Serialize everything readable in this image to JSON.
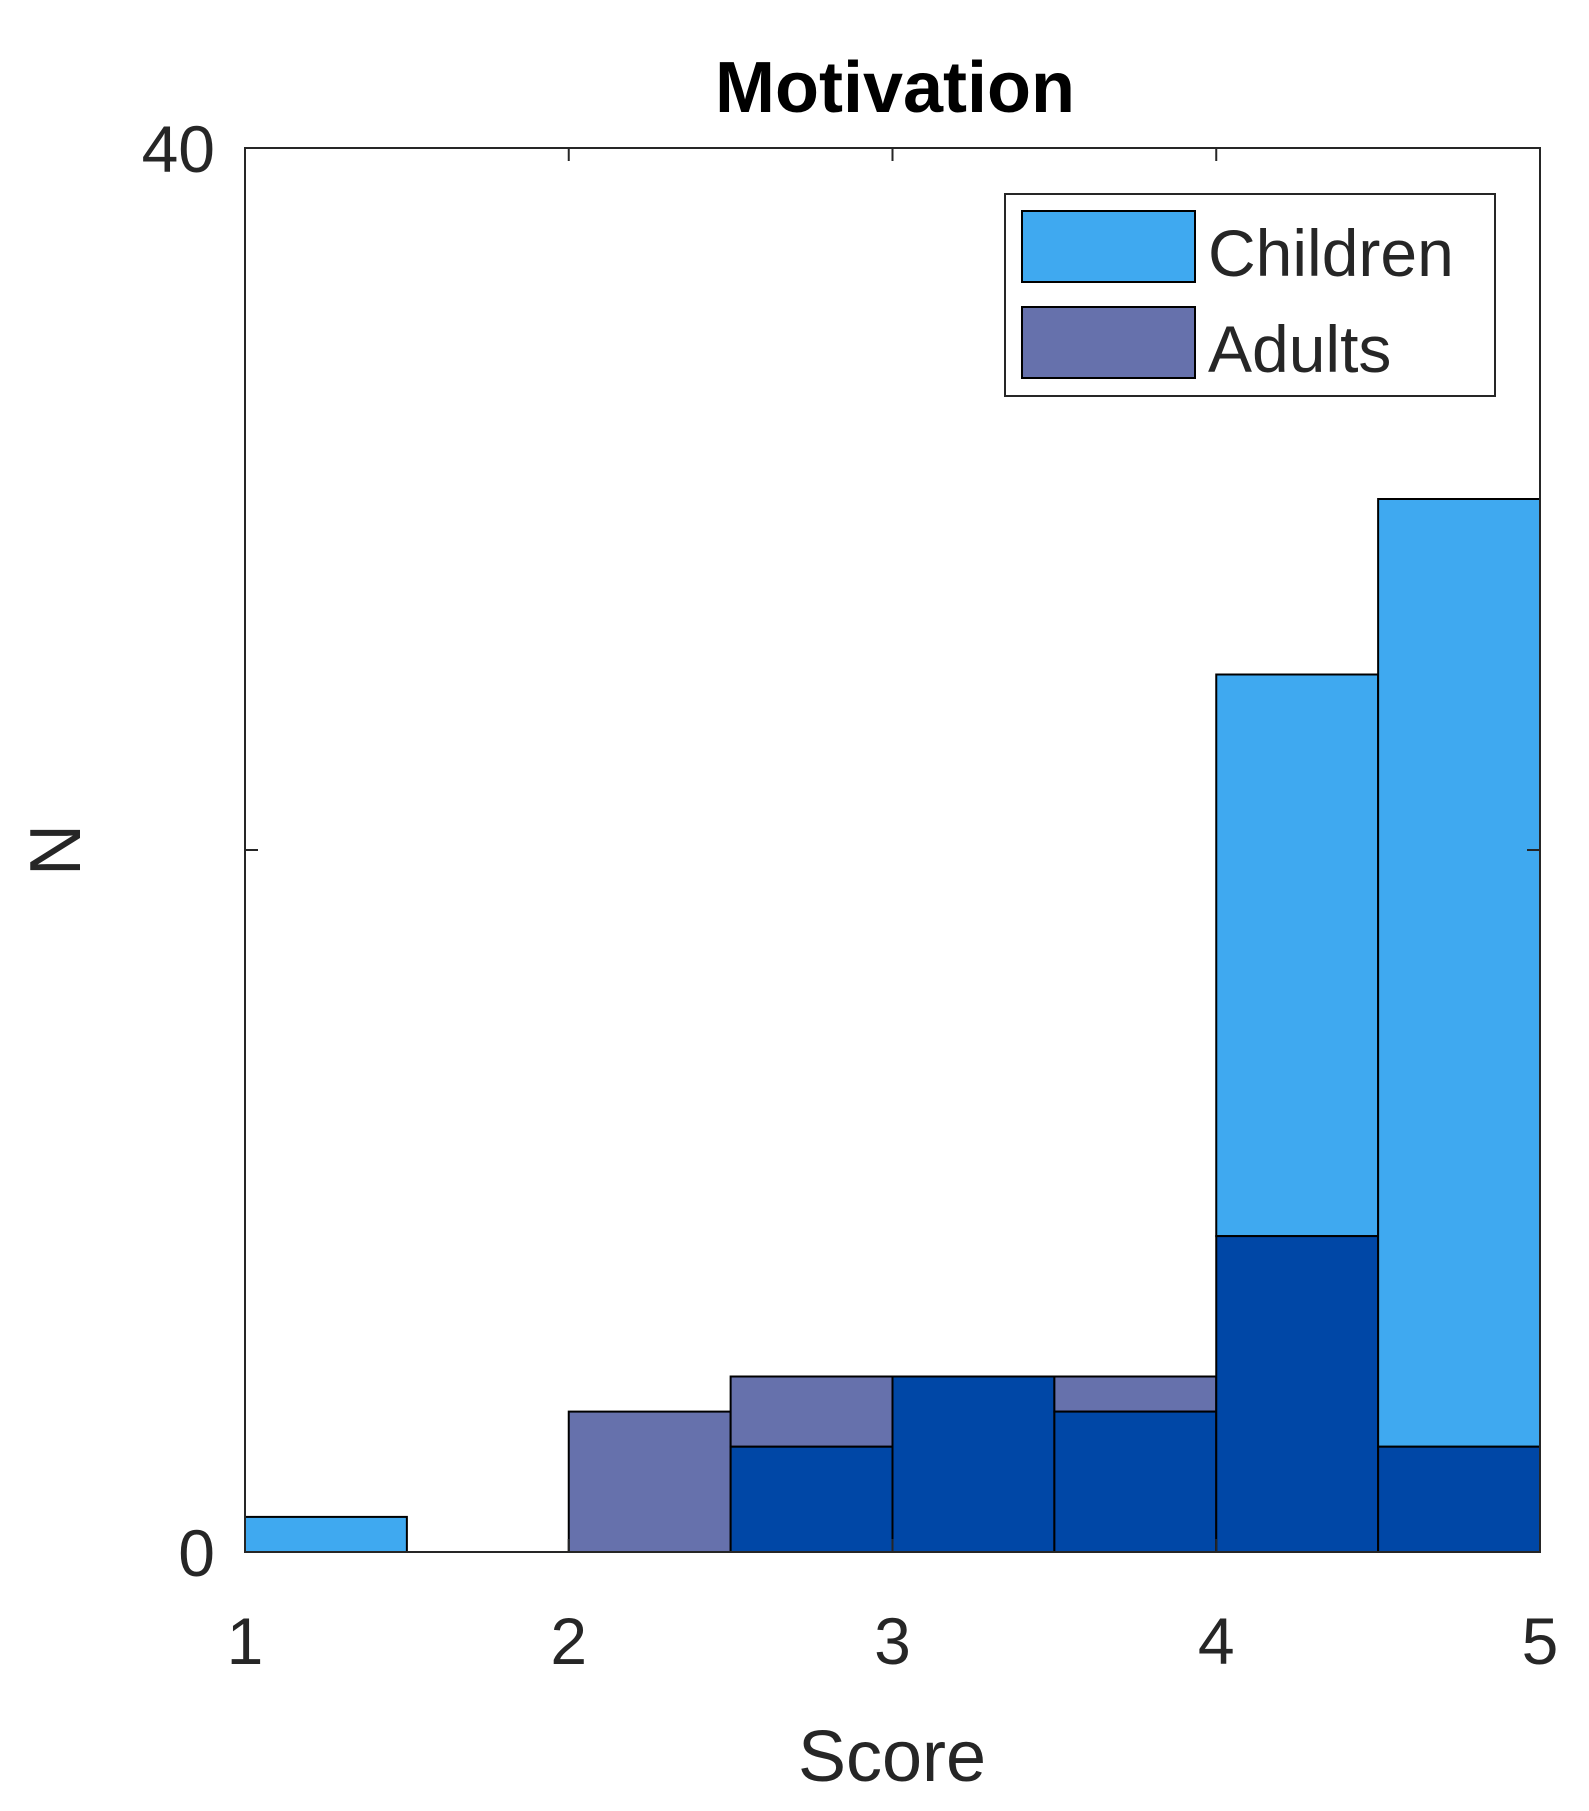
{
  "chart_data": {
    "type": "bar",
    "title": "Motivation",
    "xlabel": "Score",
    "ylabel": "N",
    "xlim": [
      1,
      5
    ],
    "ylim": [
      0,
      40
    ],
    "xticks": [
      "1",
      "2",
      "3",
      "4",
      "5"
    ],
    "yticks": [
      "0",
      "40"
    ],
    "bin_width": 0.5,
    "bins": [
      1,
      1.5,
      2,
      2.5,
      3,
      3.5,
      4,
      4.5
    ],
    "overlap_color": "#0047A6",
    "grid": false,
    "legend_position": "top-right",
    "series": [
      {
        "name": "Children",
        "color": "#3FA9F0",
        "values": [
          1,
          0,
          0,
          3,
          5,
          4,
          25,
          30
        ]
      },
      {
        "name": "Adults",
        "color": "#6671AC",
        "values": [
          0,
          0,
          4,
          5,
          5,
          5,
          9,
          3
        ]
      }
    ]
  }
}
